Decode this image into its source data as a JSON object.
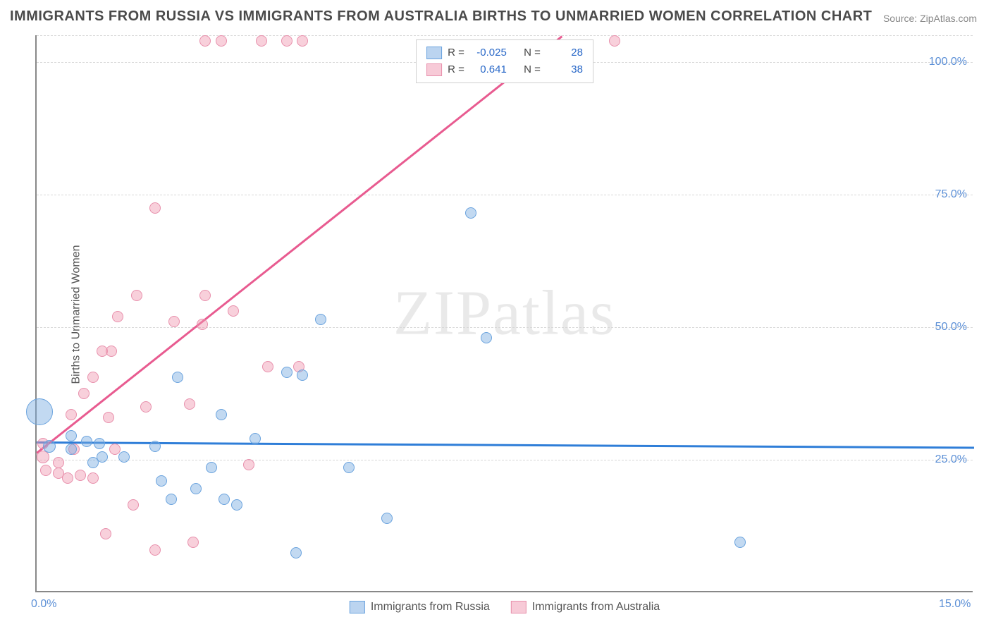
{
  "title": "IMMIGRANTS FROM RUSSIA VS IMMIGRANTS FROM AUSTRALIA BIRTHS TO UNMARRIED WOMEN CORRELATION CHART",
  "source": "Source: ZipAtlas.com",
  "ylabel": "Births to Unmarried Women",
  "watermark": "ZIPatlas",
  "chart": {
    "type": "scatter",
    "xlim": [
      0,
      15
    ],
    "ylim": [
      0,
      105
    ],
    "xticks": [
      {
        "v": 0,
        "label": "0.0%"
      },
      {
        "v": 15,
        "label": "15.0%"
      }
    ],
    "yticks": [
      {
        "v": 25,
        "label": "25.0%"
      },
      {
        "v": 50,
        "label": "50.0%"
      },
      {
        "v": 75,
        "label": "75.0%"
      },
      {
        "v": 100,
        "label": "100.0%"
      }
    ],
    "grid_color": "#d8d8d8",
    "background": "#ffffff",
    "marker_base_size": 16,
    "series": [
      {
        "name": "Immigrants from Russia",
        "color_fill": "#78aae1",
        "color_stroke": "#6aa3de",
        "corr_R": "-0.025",
        "corr_N": "28",
        "trend": {
          "x1": 0,
          "y1": 28.5,
          "x2": 15,
          "y2": 27.5,
          "color": "#2f7ed8"
        },
        "points": [
          {
            "x": 0.05,
            "y": 34,
            "s": 38
          },
          {
            "x": 0.2,
            "y": 27.5,
            "s": 18
          },
          {
            "x": 0.55,
            "y": 29.5,
            "s": 16
          },
          {
            "x": 0.55,
            "y": 27,
            "s": 16
          },
          {
            "x": 0.8,
            "y": 28.5,
            "s": 16
          },
          {
            "x": 0.9,
            "y": 24.5,
            "s": 16
          },
          {
            "x": 1.0,
            "y": 28,
            "s": 16
          },
          {
            "x": 1.05,
            "y": 25.5,
            "s": 16
          },
          {
            "x": 1.4,
            "y": 25.5,
            "s": 16
          },
          {
            "x": 1.9,
            "y": 27.5,
            "s": 16
          },
          {
            "x": 2.0,
            "y": 21,
            "s": 16
          },
          {
            "x": 2.15,
            "y": 17.5,
            "s": 16
          },
          {
            "x": 2.25,
            "y": 40.5,
            "s": 16
          },
          {
            "x": 2.55,
            "y": 19.5,
            "s": 16
          },
          {
            "x": 2.8,
            "y": 23.5,
            "s": 16
          },
          {
            "x": 2.95,
            "y": 33.5,
            "s": 16
          },
          {
            "x": 3.0,
            "y": 17.5,
            "s": 16
          },
          {
            "x": 3.2,
            "y": 16.5,
            "s": 16
          },
          {
            "x": 3.5,
            "y": 29,
            "s": 16
          },
          {
            "x": 4.0,
            "y": 41.5,
            "s": 16
          },
          {
            "x": 4.15,
            "y": 7.5,
            "s": 16
          },
          {
            "x": 4.25,
            "y": 41,
            "s": 16
          },
          {
            "x": 4.55,
            "y": 51.5,
            "s": 16
          },
          {
            "x": 5.0,
            "y": 23.5,
            "s": 16
          },
          {
            "x": 5.6,
            "y": 14,
            "s": 16
          },
          {
            "x": 6.95,
            "y": 71.5,
            "s": 16
          },
          {
            "x": 11.25,
            "y": 9.5,
            "s": 16
          },
          {
            "x": 7.2,
            "y": 48,
            "s": 16
          }
        ]
      },
      {
        "name": "Immigrants from Australia",
        "color_fill": "#f096af",
        "color_stroke": "#e890ac",
        "corr_R": "0.641",
        "corr_N": "38",
        "trend": {
          "x1": 0,
          "y1": 26.5,
          "x2": 8.4,
          "y2": 105,
          "color": "#e85b90"
        },
        "points": [
          {
            "x": 0.1,
            "y": 25.5,
            "s": 18
          },
          {
            "x": 0.1,
            "y": 28,
            "s": 16
          },
          {
            "x": 0.15,
            "y": 23,
            "s": 16
          },
          {
            "x": 0.35,
            "y": 24.5,
            "s": 16
          },
          {
            "x": 0.35,
            "y": 22.5,
            "s": 16
          },
          {
            "x": 0.5,
            "y": 21.5,
            "s": 16
          },
          {
            "x": 0.55,
            "y": 33.5,
            "s": 16
          },
          {
            "x": 0.6,
            "y": 27,
            "s": 16
          },
          {
            "x": 0.7,
            "y": 22,
            "s": 16
          },
          {
            "x": 0.75,
            "y": 37.5,
            "s": 16
          },
          {
            "x": 0.9,
            "y": 40.5,
            "s": 16
          },
          {
            "x": 0.9,
            "y": 21.5,
            "s": 16
          },
          {
            "x": 1.05,
            "y": 45.5,
            "s": 16
          },
          {
            "x": 1.15,
            "y": 33,
            "s": 16
          },
          {
            "x": 1.2,
            "y": 45.5,
            "s": 16
          },
          {
            "x": 1.25,
            "y": 27,
            "s": 16
          },
          {
            "x": 1.3,
            "y": 52,
            "s": 16
          },
          {
            "x": 1.55,
            "y": 16.5,
            "s": 16
          },
          {
            "x": 1.6,
            "y": 56,
            "s": 16
          },
          {
            "x": 1.75,
            "y": 35,
            "s": 16
          },
          {
            "x": 1.9,
            "y": 72.5,
            "s": 16
          },
          {
            "x": 1.9,
            "y": 8,
            "s": 16
          },
          {
            "x": 2.2,
            "y": 51,
            "s": 16
          },
          {
            "x": 2.45,
            "y": 35.5,
            "s": 16
          },
          {
            "x": 2.5,
            "y": 9.5,
            "s": 16
          },
          {
            "x": 2.65,
            "y": 50.5,
            "s": 16
          },
          {
            "x": 2.7,
            "y": 56,
            "s": 16
          },
          {
            "x": 2.7,
            "y": 104,
            "s": 16
          },
          {
            "x": 2.95,
            "y": 104,
            "s": 16
          },
          {
            "x": 3.15,
            "y": 53,
            "s": 16
          },
          {
            "x": 3.4,
            "y": 24,
            "s": 16
          },
          {
            "x": 3.6,
            "y": 104,
            "s": 16
          },
          {
            "x": 3.7,
            "y": 42.5,
            "s": 16
          },
          {
            "x": 4.0,
            "y": 104,
            "s": 16
          },
          {
            "x": 4.2,
            "y": 42.5,
            "s": 16
          },
          {
            "x": 4.25,
            "y": 104,
            "s": 16
          },
          {
            "x": 1.1,
            "y": 11,
            "s": 16
          },
          {
            "x": 9.25,
            "y": 104,
            "s": 16
          }
        ]
      }
    ]
  }
}
